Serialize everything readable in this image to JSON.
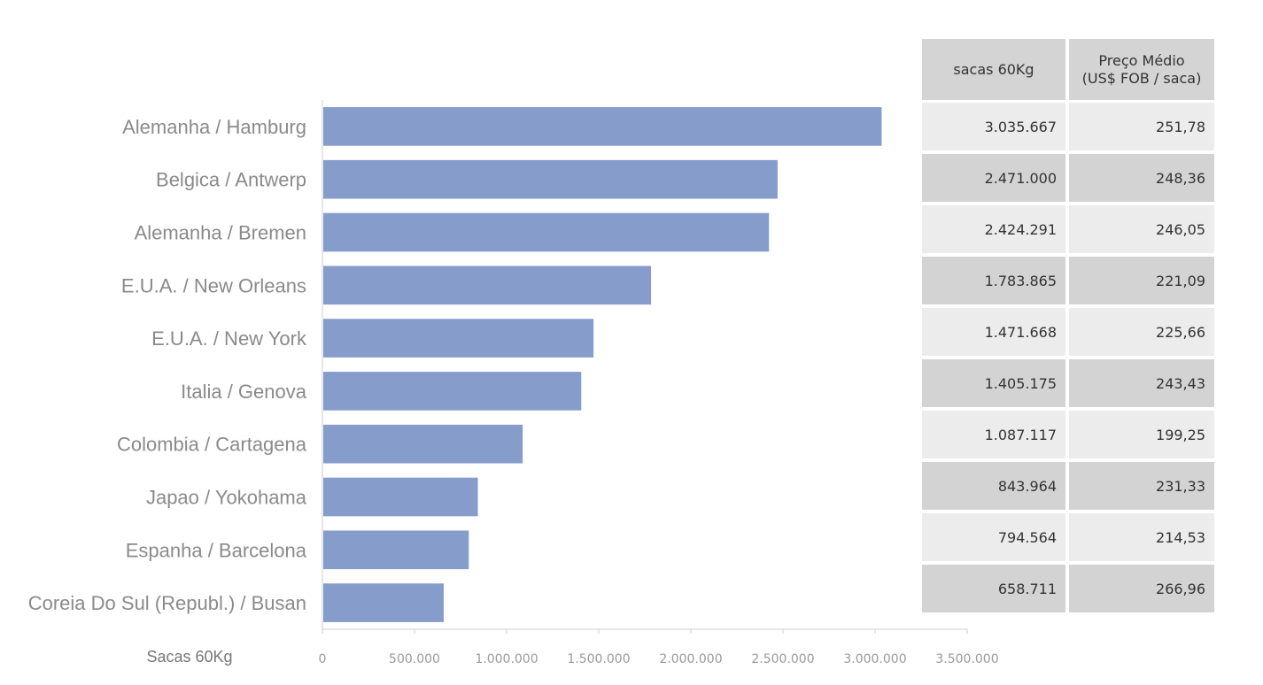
{
  "chart_data": {
    "type": "bar",
    "orientation": "horizontal",
    "categories": [
      "Alemanha / Hamburg",
      "Belgica / Antwerp",
      "Alemanha / Bremen",
      "E.U.A. / New Orleans",
      "E.U.A. / New York",
      "Italia / Genova",
      "Colombia / Cartagena",
      "Japao / Yokohama",
      "Espanha / Barcelona",
      "Coreia Do Sul (Republ.) / Busan"
    ],
    "values": [
      3035667,
      2471000,
      2424291,
      1783865,
      1471668,
      1405175,
      1087117,
      843964,
      794564,
      658711
    ],
    "xlabel": "Sacas 60Kg",
    "xlim": [
      0,
      3500000
    ],
    "ticks": [
      0,
      500000,
      1000000,
      1500000,
      2000000,
      2500000,
      3000000,
      3500000
    ],
    "tick_labels": [
      "0",
      "500.000",
      "1.000.000",
      "1.500.000",
      "2.000.000",
      "2.500.000",
      "3.000.000",
      "3.500.000"
    ],
    "bar_color": "#869dcb",
    "grid": false
  },
  "table": {
    "headers": [
      "sacas 60Kg",
      "Preço Médio",
      "(US$ FOB / saca)"
    ],
    "rows": [
      [
        "3.035.667",
        "251,78"
      ],
      [
        "2.471.000",
        "248,36"
      ],
      [
        "2.424.291",
        "246,05"
      ],
      [
        "1.783.865",
        "221,09"
      ],
      [
        "1.471.668",
        "225,66"
      ],
      [
        "1.405.175",
        "243,43"
      ],
      [
        "1.087.117",
        "199,25"
      ],
      [
        "843.964",
        "231,33"
      ],
      [
        "794.564",
        "214,53"
      ],
      [
        "658.711",
        "266,96"
      ]
    ]
  }
}
